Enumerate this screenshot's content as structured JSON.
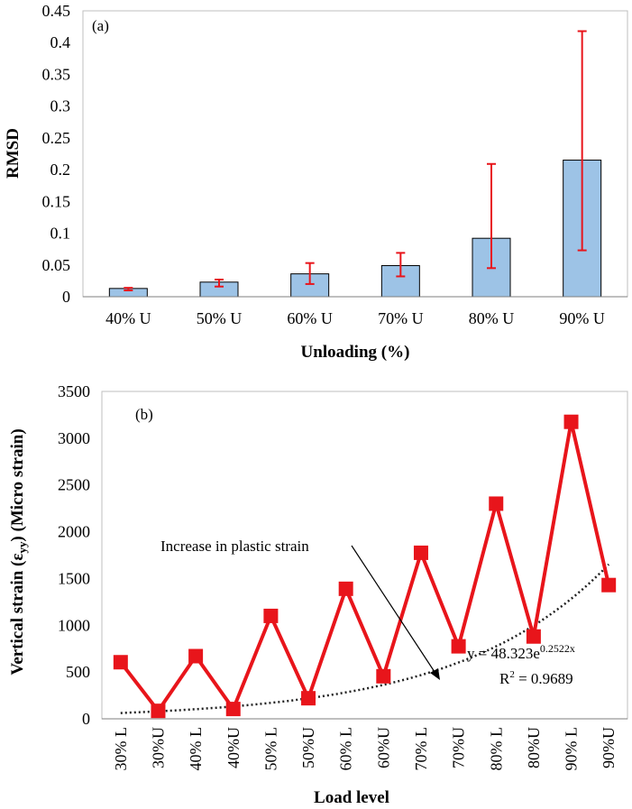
{
  "chart_data": [
    {
      "type": "bar",
      "panel_label": "(a)",
      "title": "",
      "xlabel": "Unloading (%)",
      "ylabel": "RMSD",
      "ylim": [
        0,
        0.45
      ],
      "yticks": [
        "0",
        "0.05",
        "0.1",
        "0.15",
        "0.2",
        "0.25",
        "0.3",
        "0.35",
        "0.4",
        "0.45"
      ],
      "ytick_values": [
        0,
        0.05,
        0.1,
        0.15,
        0.2,
        0.25,
        0.3,
        0.35,
        0.4,
        0.45
      ],
      "categories": [
        "40% U",
        "50% U",
        "60% U",
        "70% U",
        "80% U",
        "90% U"
      ],
      "values": [
        0.013,
        0.023,
        0.036,
        0.049,
        0.092,
        0.215
      ],
      "error_low": [
        0.01,
        0.016,
        0.02,
        0.032,
        0.045,
        0.073
      ],
      "error_high": [
        0.014,
        0.027,
        0.053,
        0.069,
        0.209,
        0.418
      ],
      "bar_color": "#9dc3e6",
      "error_color": "#e8151b",
      "grid": false
    },
    {
      "type": "line",
      "panel_label": "(b)",
      "title": "",
      "xlabel": "Load level",
      "ylabel": "Vertical strain (ε",
      "ylabel_sub": "yy",
      "ylabel_suffix": ") (Micro strain)",
      "ylim": [
        0,
        3500
      ],
      "yticks": [
        "0",
        "500",
        "1000",
        "1500",
        "2000",
        "2500",
        "3000",
        "3500"
      ],
      "ytick_values": [
        0,
        500,
        1000,
        1500,
        2000,
        2500,
        3000,
        3500
      ],
      "categories": [
        "30% L",
        "30%U",
        "40% L",
        "40%U",
        "50% L",
        "50%U",
        "60% L",
        "60%U",
        "70% L",
        "70%U",
        "80% L",
        "80%U",
        "90% L",
        "90%U"
      ],
      "series": [
        {
          "name": "Vertical strain",
          "values": [
            605,
            85,
            670,
            105,
            1100,
            220,
            1390,
            455,
            1775,
            775,
            2300,
            880,
            3175,
            1430
          ],
          "color": "#e8151b"
        }
      ],
      "trendline": {
        "a": 48.323,
        "b": 0.2522,
        "label": "y = 48.323e",
        "exponent": "0.2522x",
        "r2_label": "R",
        "r2_sup": "2",
        "r2_value": " = 0.9689"
      },
      "annotation": "Increase in plastic strain",
      "grid": false
    }
  ]
}
